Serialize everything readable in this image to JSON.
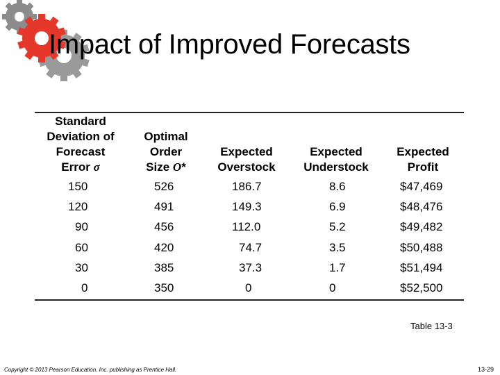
{
  "slide": {
    "title": "Impact of Improved Forecasts",
    "caption": "Table 13-3",
    "copyright": "Copyright © 2013 Pearson Education, Inc. publishing as Prentice Hall.",
    "page_number": "13-29",
    "decoration": {
      "icon": "gears-icon",
      "colors": [
        "#e5382b",
        "#8c8c8c",
        "#b3b3b3"
      ]
    }
  },
  "table": {
    "headers": {
      "col1": {
        "line1": "Standard",
        "line2": "Deviation of",
        "line3": "Forecast",
        "line4_text": "Error ",
        "line4_symbol": "σ"
      },
      "col2": {
        "line1": "Optimal",
        "line2": "Order",
        "line3_text": "Size ",
        "line3_symbol": "O",
        "line3_suffix": "*"
      },
      "col3": {
        "line1": "Expected",
        "line2": "Overstock"
      },
      "col4": {
        "line1": "Expected",
        "line2": "Understock"
      },
      "col5": {
        "line1": "Expected",
        "line2": "Profit"
      }
    },
    "rows": [
      [
        "150",
        "526",
        "186.7",
        "8.6",
        "$47,469"
      ],
      [
        "120",
        "491",
        "149.3",
        "6.9",
        "$48,476"
      ],
      [
        "90",
        "456",
        "112.0",
        "5.2",
        "$49,482"
      ],
      [
        "60",
        "420",
        "74.7",
        "3.5",
        "$50,488"
      ],
      [
        "30",
        "385",
        "37.3",
        "1.7",
        "$51,494"
      ],
      [
        "0",
        "350",
        "0",
        "0",
        "$52,500"
      ]
    ]
  }
}
